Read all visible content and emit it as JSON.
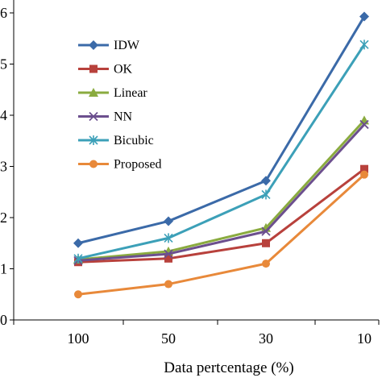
{
  "chart_data": {
    "type": "line",
    "title": "",
    "xlabel": "Data pertcentage  (%)",
    "ylabel": "",
    "categories": [
      "100",
      "50",
      "30",
      "10"
    ],
    "ylim": [
      0,
      7
    ],
    "yticks": [
      "0",
      "1",
      "2",
      "3",
      "4",
      "5",
      "6"
    ],
    "grid": false,
    "legend_position": "top-left",
    "series": [
      {
        "name": "IDW",
        "values": [
          1.5,
          1.93,
          2.72,
          5.93
        ],
        "color": "#3b6aa8",
        "marker": "diamond"
      },
      {
        "name": "OK",
        "values": [
          1.13,
          1.2,
          1.5,
          2.95
        ],
        "color": "#b8413c",
        "marker": "square"
      },
      {
        "name": "Linear",
        "values": [
          1.18,
          1.34,
          1.8,
          3.9
        ],
        "color": "#8aab3f",
        "marker": "triangle"
      },
      {
        "name": "NN",
        "values": [
          1.16,
          1.29,
          1.73,
          3.82
        ],
        "color": "#6c4f8e",
        "marker": "x"
      },
      {
        "name": "Bicubic",
        "values": [
          1.2,
          1.6,
          2.45,
          5.38
        ],
        "color": "#3ca0b8",
        "marker": "star"
      },
      {
        "name": "Proposed",
        "values": [
          0.5,
          0.7,
          1.1,
          2.84
        ],
        "color": "#e8893a",
        "marker": "circle"
      }
    ]
  }
}
